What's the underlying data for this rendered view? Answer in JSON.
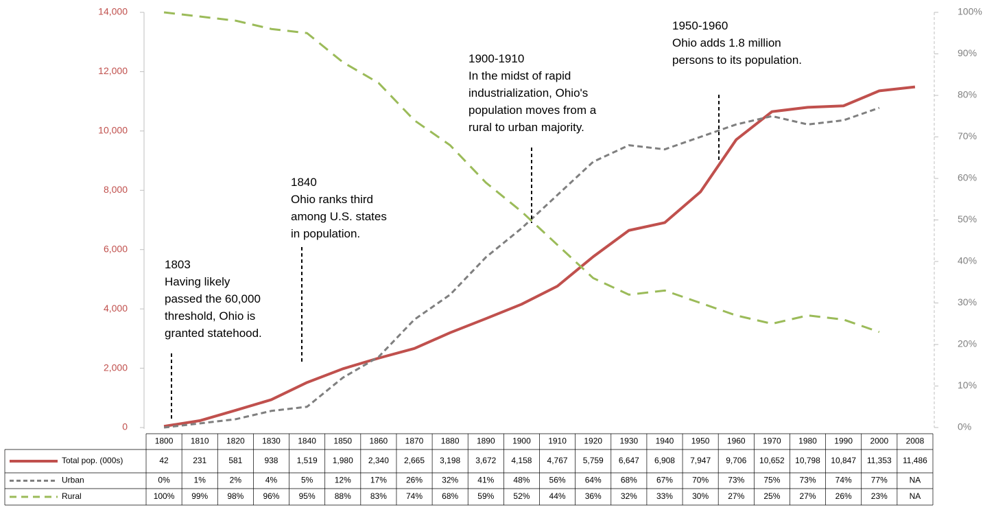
{
  "chart_data": {
    "type": "line",
    "categories": [
      "1800",
      "1810",
      "1820",
      "1830",
      "1840",
      "1850",
      "1860",
      "1870",
      "1880",
      "1890",
      "1900",
      "1910",
      "1920",
      "1930",
      "1940",
      "1950",
      "1960",
      "1970",
      "1980",
      "1990",
      "2000",
      "2008"
    ],
    "ylim": [
      0,
      14000
    ],
    "yticks": [
      0,
      {
        "value": 2000,
        "label": "2,000"
      },
      {
        "value": 4000,
        "label": "4,000"
      },
      {
        "value": 6000,
        "label": "6,000"
      },
      {
        "value": 8000,
        "label": "8,000"
      },
      {
        "value": 10000,
        "label": "10,000"
      },
      {
        "value": 12000,
        "label": "12,000"
      },
      {
        "value": 14000,
        "label": "14,000"
      }
    ],
    "y2lim": [
      0,
      100
    ],
    "y2ticks": [
      {
        "value": 0,
        "label": "0%"
      },
      {
        "value": 10,
        "label": "10%"
      },
      {
        "value": 20,
        "label": "20%"
      },
      {
        "value": 30,
        "label": "30%"
      },
      {
        "value": 40,
        "label": "40%"
      },
      {
        "value": 50,
        "label": "50%"
      },
      {
        "value": 60,
        "label": "60%"
      },
      {
        "value": 70,
        "label": "70%"
      },
      {
        "value": 80,
        "label": "80%"
      },
      {
        "value": 90,
        "label": "90%"
      },
      {
        "value": 100,
        "label": "100%"
      }
    ],
    "series": [
      {
        "name": "Total pop. (000s)",
        "color": "#c0504d",
        "dash": false,
        "values": [
          42,
          231,
          581,
          938,
          1519,
          1980,
          2340,
          2665,
          3198,
          3672,
          4158,
          4767,
          5759,
          6647,
          6908,
          7947,
          9706,
          10652,
          10798,
          10847,
          11353,
          11486
        ],
        "value_labels": [
          "42",
          "231",
          "581",
          "938",
          "1,519",
          "1,980",
          "2,340",
          "2,665",
          "3,198",
          "3,672",
          "4,158",
          "4,767",
          "5,759",
          "6,647",
          "6,908",
          "7,947",
          "9,706",
          "10,652",
          "10,798",
          "10,847",
          "11,353",
          "11,486"
        ]
      },
      {
        "name": "Urban",
        "color": "#7f7f7f",
        "dash": true,
        "axis": "y2",
        "values": [
          0,
          1,
          2,
          4,
          5,
          12,
          17,
          26,
          32,
          41,
          48,
          56,
          64,
          68,
          67,
          70,
          73,
          75,
          73,
          74,
          77,
          null
        ],
        "value_labels": [
          "0%",
          "1%",
          "2%",
          "4%",
          "5%",
          "12%",
          "17%",
          "26%",
          "32%",
          "41%",
          "48%",
          "56%",
          "64%",
          "68%",
          "67%",
          "70%",
          "73%",
          "75%",
          "73%",
          "74%",
          "77%",
          "NA"
        ]
      },
      {
        "name": "Rural",
        "color": "#9bbb59",
        "dash": true,
        "axis": "y2",
        "values": [
          100,
          99,
          98,
          96,
          95,
          88,
          83,
          74,
          68,
          59,
          52,
          44,
          36,
          32,
          33,
          30,
          27,
          25,
          27,
          26,
          23,
          null
        ],
        "value_labels": [
          "100%",
          "99%",
          "98%",
          "96%",
          "95%",
          "88%",
          "83%",
          "74%",
          "68%",
          "59%",
          "52%",
          "44%",
          "36%",
          "32%",
          "33%",
          "30%",
          "27%",
          "25%",
          "27%",
          "26%",
          "23%",
          "NA"
        ]
      }
    ],
    "annotations": [
      {
        "lines": [
          "1803",
          "Having likely",
          "passed the 60,000",
          "threshold, Ohio is",
          "granted statehood."
        ]
      },
      {
        "lines": [
          "1840",
          "Ohio ranks third",
          "among U.S. states",
          "in population."
        ]
      },
      {
        "lines": [
          "1900-1910",
          "In the midst of rapid",
          "industrialization, Ohio's",
          "population moves from a",
          "rural to urban majority."
        ]
      },
      {
        "lines": [
          "1950-1960",
          "Ohio adds 1.8 million",
          "persons to its population."
        ]
      }
    ]
  }
}
